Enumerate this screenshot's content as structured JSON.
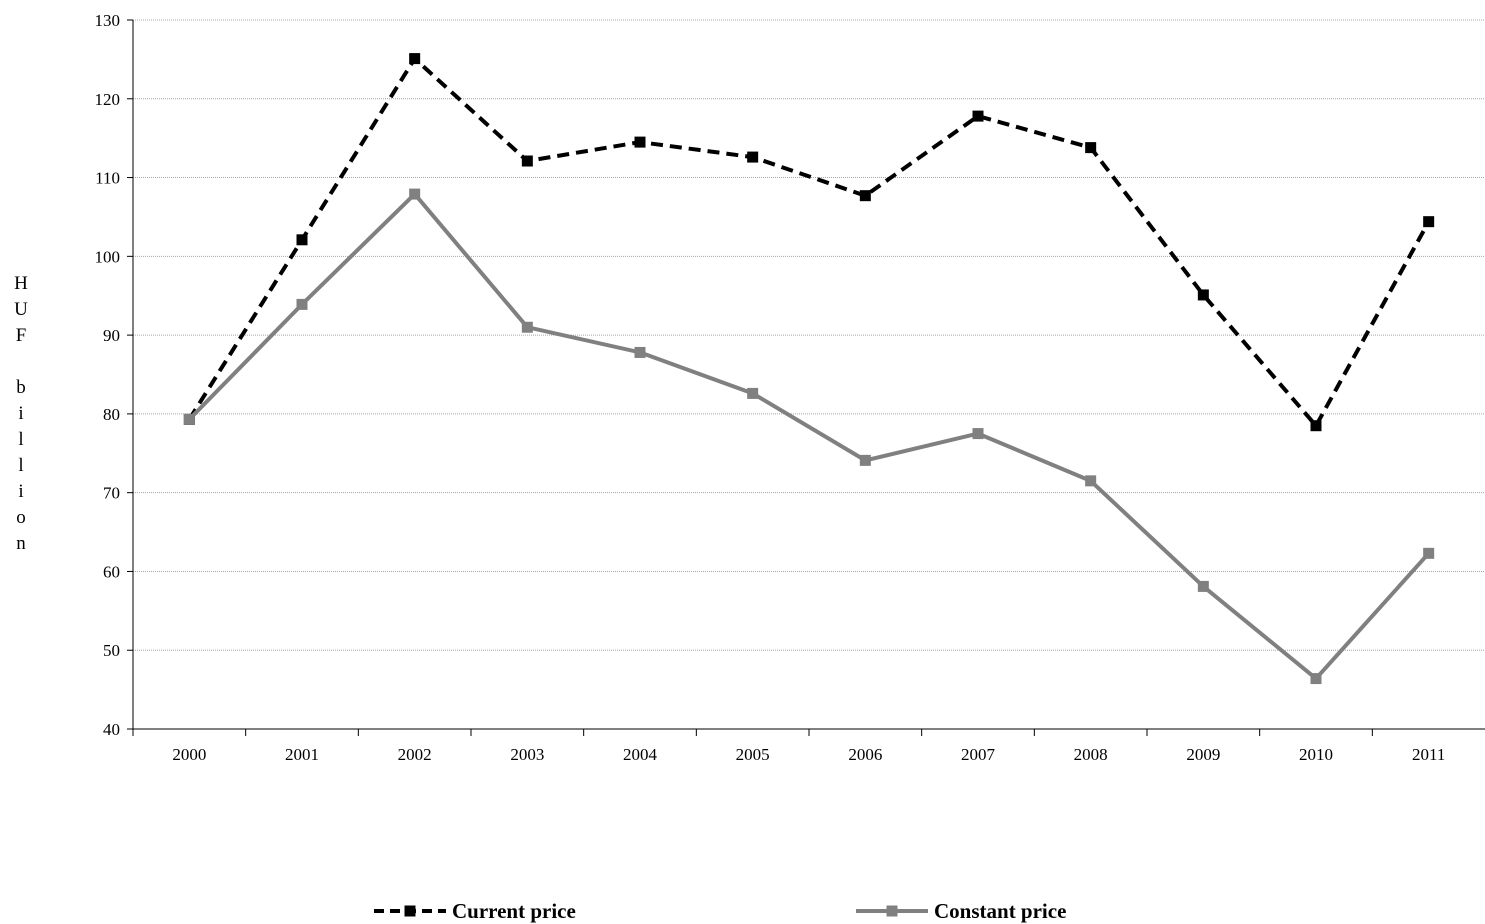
{
  "chart_data": {
    "type": "line",
    "title": "",
    "xlabel": "",
    "ylabel": "HUF billion",
    "x": [
      "2000",
      "2001",
      "2002",
      "2003",
      "2004",
      "2005",
      "2006",
      "2007",
      "2008",
      "2009",
      "2010",
      "2011"
    ],
    "ylim": [
      40,
      130
    ],
    "yticks": [
      "40",
      "50",
      "60",
      "70",
      "80",
      "90",
      "100",
      "110",
      "120",
      "130"
    ],
    "grid": true,
    "legend_position": "bottom",
    "series": [
      {
        "name": "Current price",
        "values": [
          79.3,
          102.1,
          125.1,
          112.1,
          114.5,
          112.6,
          107.7,
          117.8,
          113.8,
          95.1,
          78.5,
          104.4
        ],
        "color": "#000000",
        "line_style": "dashed",
        "marker": "square"
      },
      {
        "name": "Constant price",
        "values": [
          79.3,
          93.9,
          107.9,
          91.0,
          87.8,
          82.6,
          74.1,
          77.5,
          71.5,
          58.1,
          46.4,
          62.3
        ],
        "color": "#808080",
        "line_style": "solid",
        "marker": "square"
      }
    ]
  }
}
